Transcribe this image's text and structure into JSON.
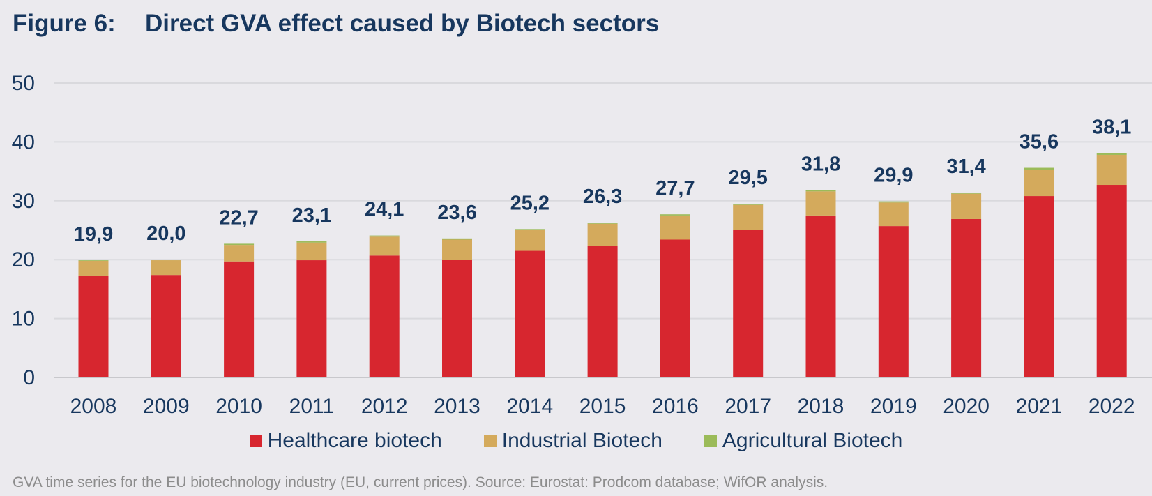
{
  "title": {
    "figure_label": "Figure 6:",
    "text": "Direct GVA effect caused by Biotech sectors"
  },
  "caption": "GVA time series for the EU biotechnology industry (EU, current prices). Source: Eurostat: Prodcom database; WifOR analysis.",
  "legend": [
    {
      "name": "Healthcare biotech",
      "color": "#d7262f"
    },
    {
      "name": "Industrial Biotech",
      "color": "#d4aa5c"
    },
    {
      "name": "Agricultural Biotech",
      "color": "#9bbb59"
    }
  ],
  "chart_data": {
    "type": "bar",
    "stacked": true,
    "categories": [
      "2008",
      "2009",
      "2010",
      "2011",
      "2012",
      "2013",
      "2014",
      "2015",
      "2016",
      "2017",
      "2018",
      "2019",
      "2020",
      "2021",
      "2022"
    ],
    "series": [
      {
        "name": "Healthcare biotech",
        "color": "#d7262f",
        "values": [
          17.3,
          17.4,
          19.7,
          19.9,
          20.7,
          20.0,
          21.5,
          22.3,
          23.4,
          25.0,
          27.5,
          25.7,
          26.9,
          30.8,
          32.7
        ]
      },
      {
        "name": "Industrial Biotech",
        "color": "#d4aa5c",
        "values": [
          2.5,
          2.5,
          2.8,
          3.0,
          3.2,
          3.4,
          3.5,
          3.8,
          4.1,
          4.3,
          4.1,
          4.0,
          4.3,
          4.5,
          5.1
        ]
      },
      {
        "name": "Agricultural Biotech",
        "color": "#9bbb59",
        "values": [
          0.1,
          0.1,
          0.2,
          0.2,
          0.2,
          0.2,
          0.2,
          0.2,
          0.2,
          0.2,
          0.2,
          0.2,
          0.2,
          0.3,
          0.3
        ]
      }
    ],
    "totals": [
      "19,9",
      "20,0",
      "22,7",
      "23,1",
      "24,1",
      "23,6",
      "25,2",
      "26,3",
      "27,7",
      "29,5",
      "31,8",
      "29,9",
      "31,4",
      "35,6",
      "38,1"
    ],
    "y_ticks": [
      "0",
      "10",
      "20",
      "30",
      "40",
      "50"
    ],
    "ylim": [
      0,
      50
    ],
    "xlabel": "",
    "ylabel": "",
    "grid": true,
    "legend_position": "bottom"
  }
}
